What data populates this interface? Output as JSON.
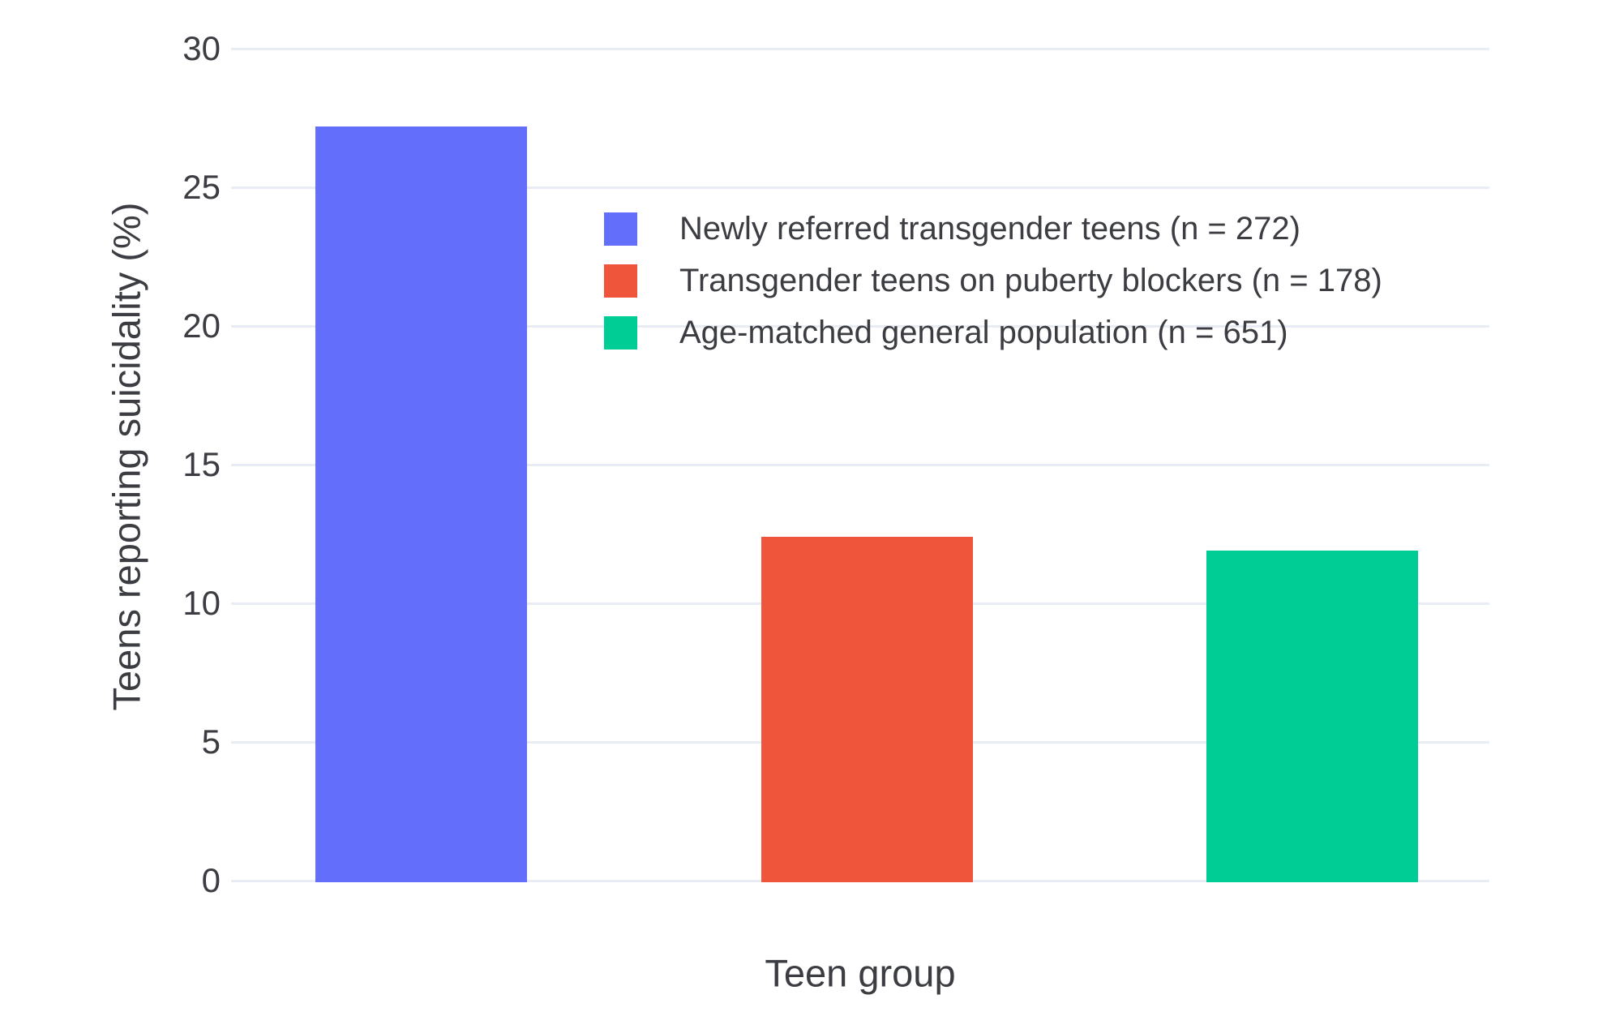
{
  "chart_data": {
    "type": "bar",
    "title": "",
    "xlabel": "Teen group",
    "ylabel": "Teens reporting suicidality (%)",
    "categories": [
      "Newly referred transgender teens (n = 272)",
      "Transgender teens on puberty blockers (n = 178)",
      "Age-matched general population (n = 651)"
    ],
    "series": [
      {
        "name": "Newly referred transgender teens (n = 272)",
        "value": 27.2,
        "color": "#636EFA"
      },
      {
        "name": "Transgender teens on puberty blockers (n = 178)",
        "value": 12.4,
        "color": "#EF553B"
      },
      {
        "name": "Age-matched general population (n = 651)",
        "value": 11.9,
        "color": "#00CC96"
      }
    ],
    "yticks": [
      0,
      5,
      10,
      15,
      20,
      25,
      30
    ],
    "ylim": [
      0,
      30.6
    ],
    "grid": true,
    "legend_position": "inside-top-center"
  },
  "legend": {
    "items": [
      {
        "label": "Newly referred transgender teens (n = 272)",
        "color": "#636EFA"
      },
      {
        "label": "Transgender teens on puberty blockers (n = 178)",
        "color": "#EF553B"
      },
      {
        "label": "Age-matched general population (n = 651)",
        "color": "#00CC96"
      }
    ]
  },
  "colors": {
    "background": "#ffffff",
    "gridline": "#E7ECF5",
    "text": "#3b3d42",
    "bar_blue": "#636EFA",
    "bar_red": "#EF553B",
    "bar_green": "#00CC96"
  }
}
